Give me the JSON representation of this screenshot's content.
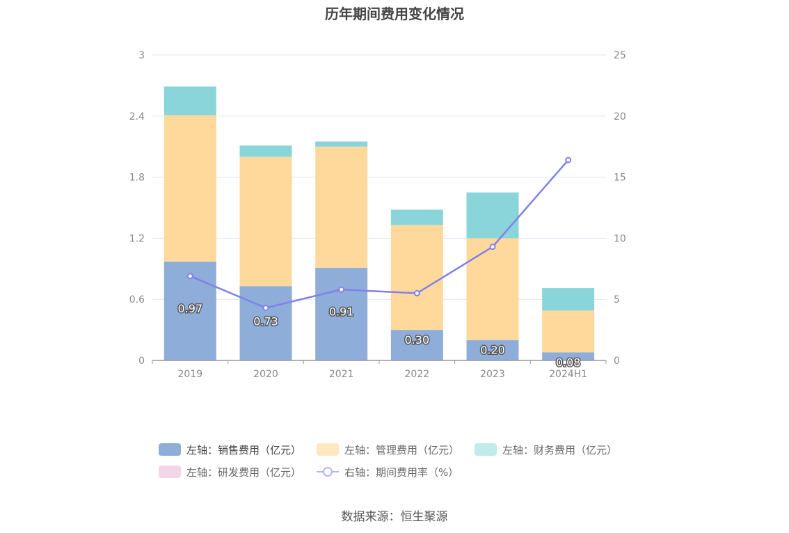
{
  "chart_data": {
    "type": "bar",
    "title": "历年期间费用变化情况",
    "categories": [
      "2019",
      "2020",
      "2021",
      "2022",
      "2023",
      "2024H1"
    ],
    "left_axis": {
      "ylim": [
        0,
        3
      ],
      "ticks": [
        "0",
        "0.6",
        "1.2",
        "1.8",
        "2.4",
        "3"
      ]
    },
    "right_axis": {
      "ylim": [
        0,
        25
      ],
      "ticks": [
        "0",
        "5",
        "10",
        "15",
        "20",
        "25"
      ]
    },
    "series": [
      {
        "name": "左轴：销售费用（亿元）",
        "type": "bar",
        "stack": true,
        "axis": "left",
        "color": "#8eadd9",
        "values": [
          0.97,
          0.73,
          0.91,
          0.3,
          0.2,
          0.08
        ],
        "labels": [
          "0.97",
          "0.73",
          "0.91",
          "0.30",
          "0.20",
          "0.08"
        ]
      },
      {
        "name": "左轴：管理费用（亿元）",
        "type": "bar",
        "stack": true,
        "axis": "left",
        "color": "#ffd99c",
        "values": [
          1.44,
          1.27,
          1.19,
          1.03,
          1.0,
          0.41
        ]
      },
      {
        "name": "左轴：财务费用（亿元）",
        "type": "bar",
        "stack": true,
        "axis": "left",
        "color": "#89d5d9",
        "values": [
          0.28,
          0.11,
          0.05,
          0.15,
          0.45,
          0.22
        ]
      },
      {
        "name": "左轴：研发费用（亿元）",
        "type": "bar",
        "stack": true,
        "axis": "left",
        "color": "#f3d5e8",
        "values": [
          0,
          0,
          0,
          0,
          0,
          0
        ]
      },
      {
        "name": "右轴：期间费用率（%）",
        "type": "line",
        "axis": "right",
        "color": "#8080ec",
        "values": [
          6.9,
          4.3,
          5.8,
          5.5,
          9.3,
          16.4
        ]
      }
    ],
    "legend_position": "bottom",
    "grid": true
  },
  "legend": {
    "row1": [
      "左轴：销售费用（亿元）",
      "左轴：管理费用（亿元）",
      "左轴：财务费用（亿元）"
    ],
    "row2": [
      "左轴：研发费用（亿元）",
      "右轴：期间费用率（%）"
    ]
  },
  "colors": {
    "sales": "#8eadd9",
    "admin": "#ffd99c",
    "finance": "#89d5d9",
    "rnd": "#f3d5e8",
    "rate": "#8080ec"
  },
  "source": "数据来源：恒生聚源"
}
